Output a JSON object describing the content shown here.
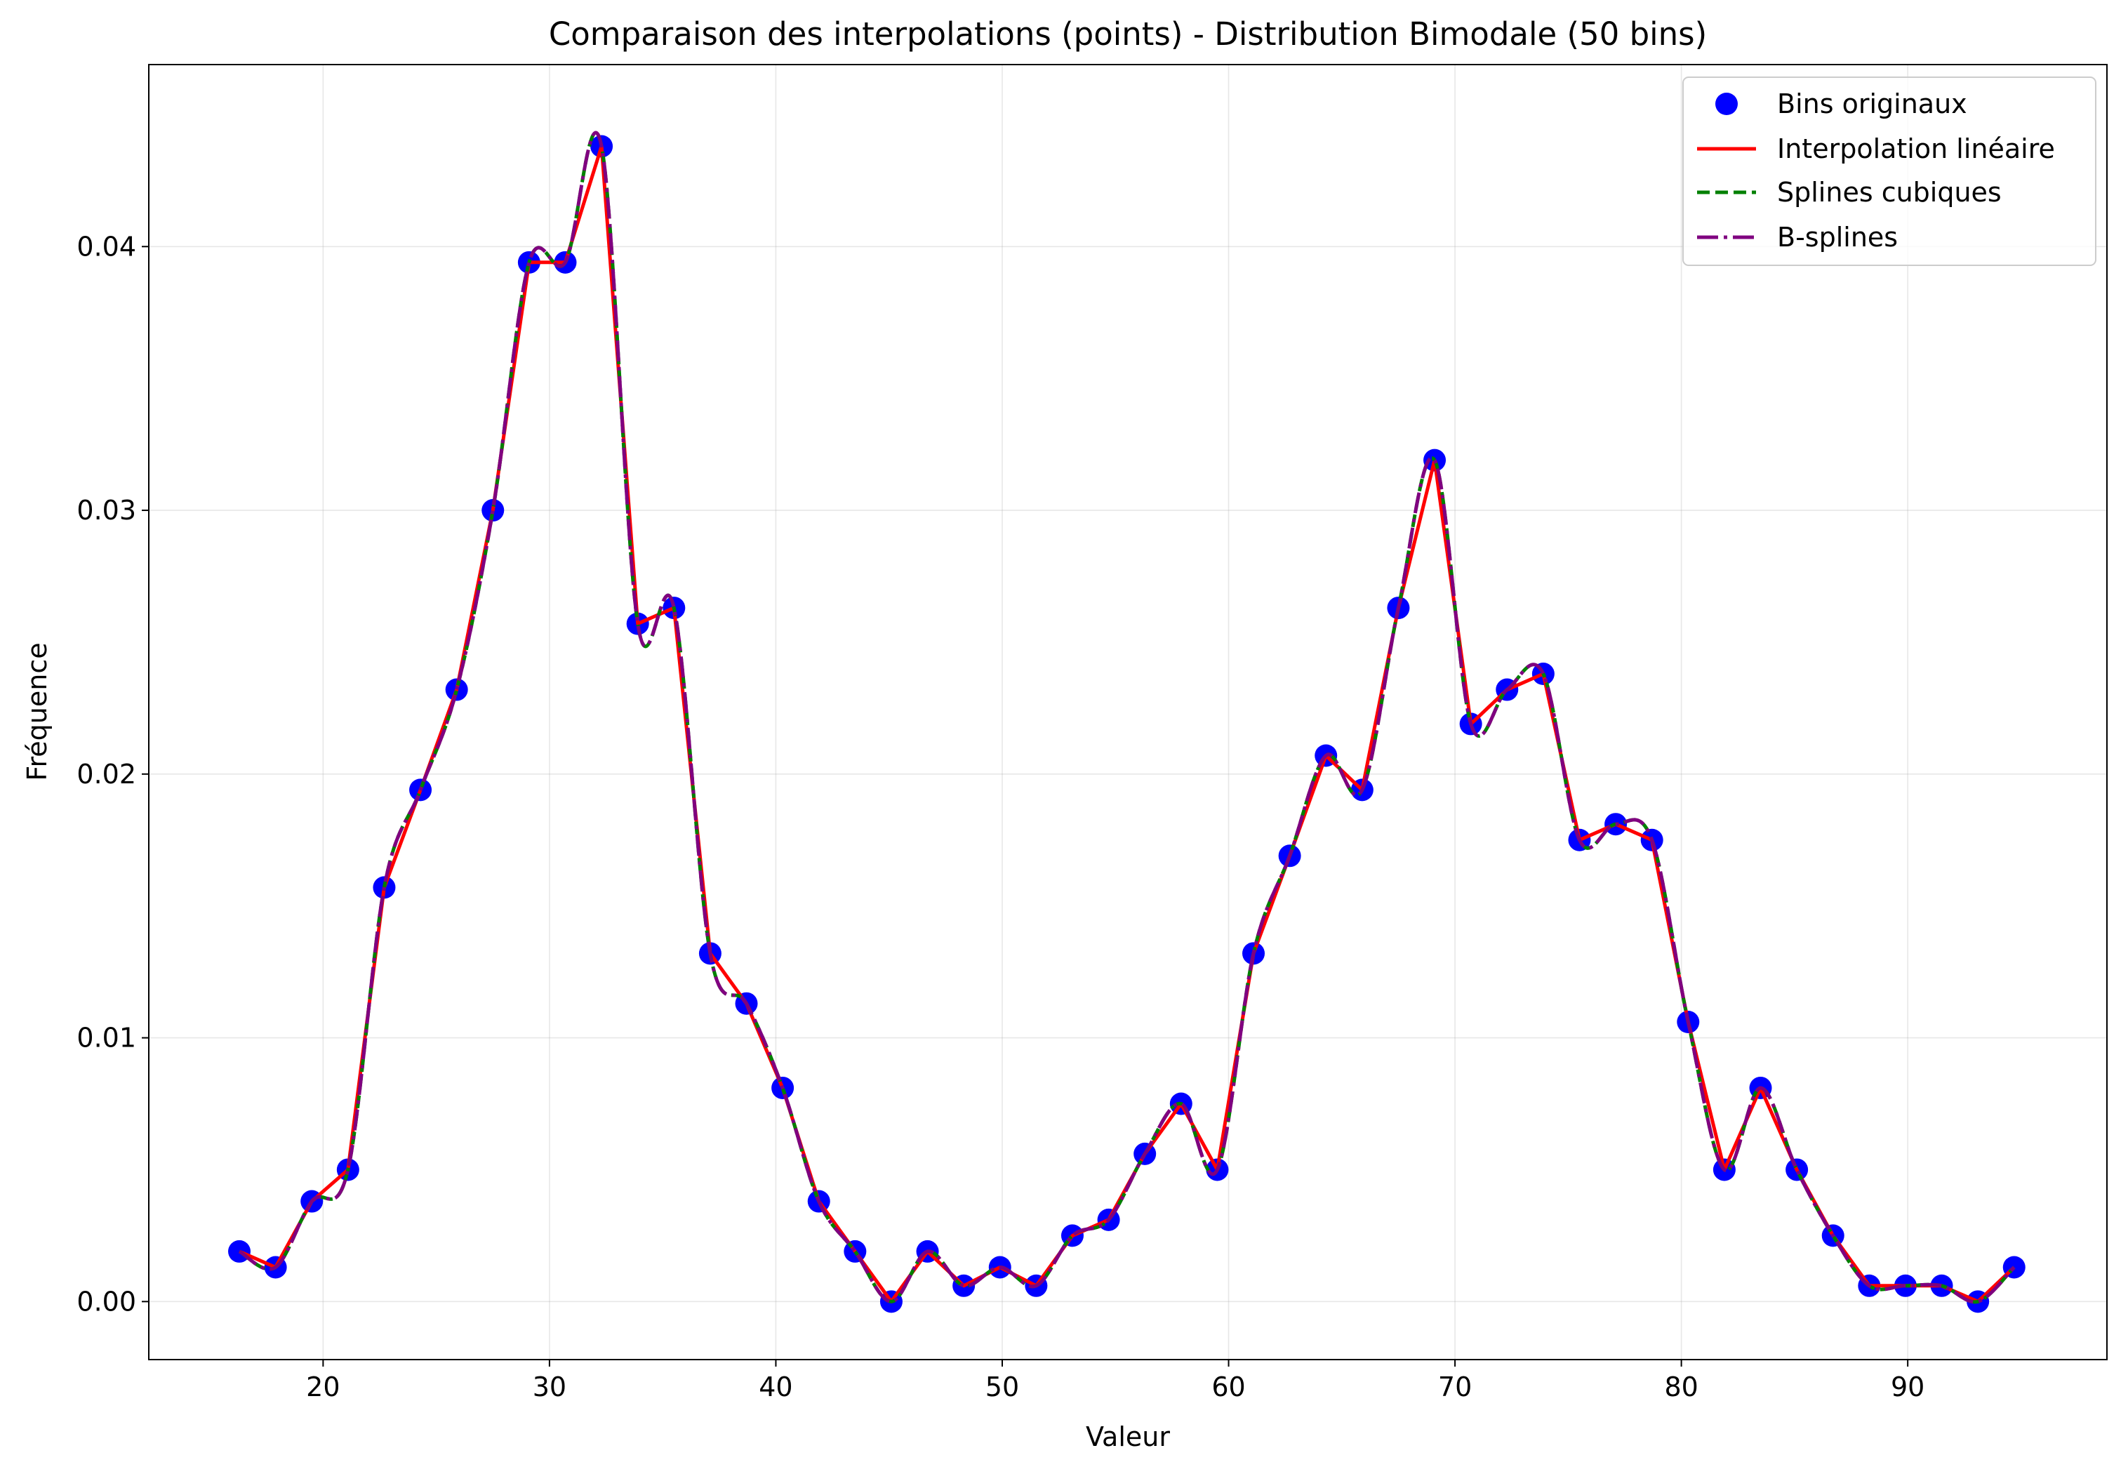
{
  "chart_data": {
    "type": "line",
    "title": "Comparaison des interpolations (points) - Distribution Bimodale (50 bins)",
    "xlabel": "Valeur",
    "ylabel": "Fréquence",
    "xlim": [
      12.3,
      98.8
    ],
    "ylim": [
      -0.0022,
      0.0469
    ],
    "xticks": [
      20,
      30,
      40,
      50,
      60,
      70,
      80,
      90
    ],
    "yticks": [
      0.0,
      0.01,
      0.02,
      0.03,
      0.04
    ],
    "ytick_labels": [
      "0.00",
      "0.01",
      "0.02",
      "0.03",
      "0.04"
    ],
    "grid": true,
    "legend_position": "top-right",
    "x": [
      16.3,
      17.9,
      19.5,
      21.1,
      22.7,
      24.3,
      25.9,
      27.5,
      29.1,
      30.7,
      32.3,
      33.9,
      35.5,
      37.1,
      38.7,
      40.3,
      41.9,
      43.5,
      45.1,
      46.7,
      48.3,
      49.9,
      51.5,
      53.1,
      54.7,
      56.3,
      57.9,
      59.5,
      61.1,
      62.7,
      64.3,
      65.9,
      67.5,
      69.1,
      70.7,
      72.3,
      73.9,
      75.5,
      77.1,
      78.7,
      80.3,
      81.9,
      83.5,
      85.1,
      86.7,
      88.3,
      89.9,
      91.5,
      93.1,
      94.7
    ],
    "series": [
      {
        "name": "Bins originaux",
        "style": "markers",
        "color": "#0000ff",
        "values": [
          0.0019,
          0.0013,
          0.0038,
          0.005,
          0.0157,
          0.0194,
          0.0232,
          0.03,
          0.0394,
          0.0394,
          0.0438,
          0.0257,
          0.0263,
          0.0132,
          0.0113,
          0.0081,
          0.0038,
          0.0019,
          0.0,
          0.0019,
          0.0006,
          0.0013,
          0.0006,
          0.0025,
          0.0031,
          0.0056,
          0.0075,
          0.005,
          0.0132,
          0.0169,
          0.0207,
          0.0194,
          0.0263,
          0.0319,
          0.0219,
          0.0232,
          0.0238,
          0.0175,
          0.0181,
          0.0175,
          0.0106,
          0.005,
          0.0081,
          0.005,
          0.0025,
          0.0006,
          0.0006,
          0.0006,
          0.0,
          0.0013
        ]
      },
      {
        "name": "Interpolation linéaire",
        "style": "solid",
        "color": "#ff0000",
        "values": [
          0.0019,
          0.0013,
          0.0038,
          0.005,
          0.0157,
          0.0194,
          0.0232,
          0.03,
          0.0394,
          0.0394,
          0.0438,
          0.0257,
          0.0263,
          0.0132,
          0.0113,
          0.0081,
          0.0038,
          0.0019,
          0.0,
          0.0019,
          0.0006,
          0.0013,
          0.0006,
          0.0025,
          0.0031,
          0.0056,
          0.0075,
          0.005,
          0.0132,
          0.0169,
          0.0207,
          0.0194,
          0.0263,
          0.0319,
          0.0219,
          0.0232,
          0.0238,
          0.0175,
          0.0181,
          0.0175,
          0.0106,
          0.005,
          0.0081,
          0.005,
          0.0025,
          0.0006,
          0.0006,
          0.0006,
          0.0,
          0.0013
        ]
      },
      {
        "name": "Splines cubiques",
        "style": "dashed",
        "color": "#008000",
        "values": [
          0.0019,
          0.0013,
          0.0038,
          0.005,
          0.0157,
          0.0194,
          0.0232,
          0.03,
          0.0394,
          0.0394,
          0.0438,
          0.0257,
          0.0263,
          0.0132,
          0.0113,
          0.0081,
          0.0038,
          0.0019,
          0.0,
          0.0019,
          0.0006,
          0.0013,
          0.0006,
          0.0025,
          0.0031,
          0.0056,
          0.0075,
          0.005,
          0.0132,
          0.0169,
          0.0207,
          0.0194,
          0.0263,
          0.0319,
          0.0219,
          0.0232,
          0.0238,
          0.0175,
          0.0181,
          0.0175,
          0.0106,
          0.005,
          0.0081,
          0.005,
          0.0025,
          0.0006,
          0.0006,
          0.0006,
          0.0,
          0.0013
        ]
      },
      {
        "name": "B-splines",
        "style": "dashdot",
        "color": "#800080",
        "values": [
          0.0019,
          0.0013,
          0.0038,
          0.005,
          0.0157,
          0.0194,
          0.0232,
          0.03,
          0.0394,
          0.0394,
          0.0438,
          0.0257,
          0.0263,
          0.0132,
          0.0113,
          0.0081,
          0.0038,
          0.0019,
          0.0,
          0.0019,
          0.0006,
          0.0013,
          0.0006,
          0.0025,
          0.0031,
          0.0056,
          0.0075,
          0.005,
          0.0132,
          0.0169,
          0.0207,
          0.0194,
          0.0263,
          0.0319,
          0.0219,
          0.0232,
          0.0238,
          0.0175,
          0.0181,
          0.0175,
          0.0106,
          0.005,
          0.0081,
          0.005,
          0.0025,
          0.0006,
          0.0006,
          0.0006,
          0.0,
          0.0013
        ]
      }
    ]
  }
}
